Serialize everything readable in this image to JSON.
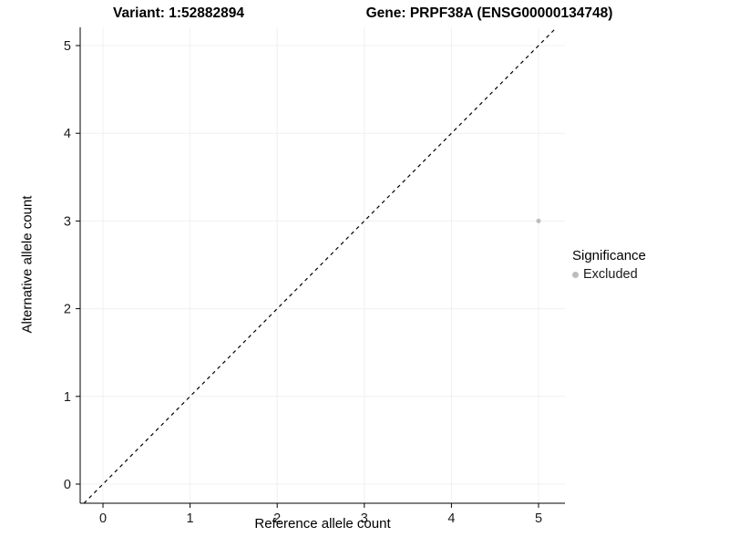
{
  "chart_data": {
    "type": "scatter",
    "title_left": "Variant: 1:52882894",
    "title_right": "Gene: PRPF38A (ENSG00000134748)",
    "xlabel": "Reference allele count",
    "ylabel": "Alternative allele count",
    "xlim": [
      -0.26,
      5.3
    ],
    "ylim": [
      -0.22,
      5.21
    ],
    "x_ticks": [
      0,
      1,
      2,
      3,
      4,
      5
    ],
    "y_ticks": [
      0,
      1,
      2,
      3,
      4,
      5
    ],
    "grid": true,
    "grid_color": "#f0f0f0",
    "axis_color": "#000000",
    "reference_line": {
      "type": "identity",
      "style": "dashed",
      "color": "#000000"
    },
    "series": [
      {
        "name": "Excluded",
        "color": "#bdbdbd",
        "points": [
          {
            "x": 5,
            "y": 3
          }
        ]
      }
    ],
    "legend": {
      "title": "Significance",
      "position": "right",
      "items": [
        {
          "label": "Excluded",
          "color": "#bdbdbd"
        }
      ]
    }
  }
}
